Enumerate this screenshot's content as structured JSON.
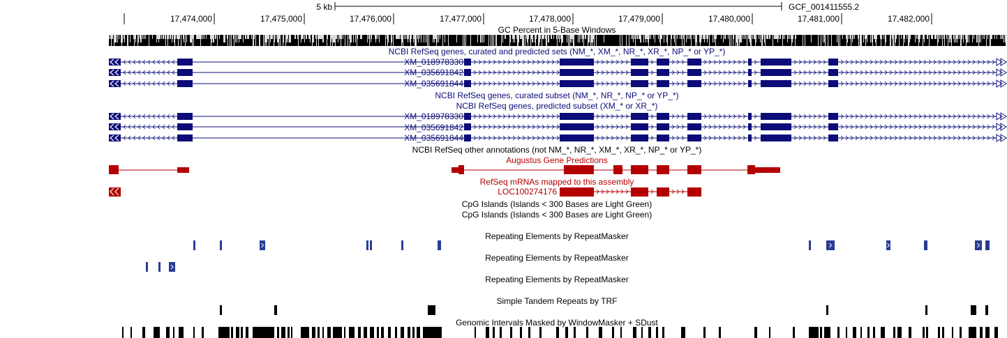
{
  "genome": {
    "scale_label": "5 kb",
    "assembly": "GCF_001411555.2",
    "positions": [
      "17,474,000",
      "17,475,000",
      "17,476,000",
      "17,477,000",
      "17,478,000",
      "17,479,000",
      "17,480,000",
      "17,481,000",
      "17,482,000"
    ]
  },
  "tracks": {
    "gc_percent": {
      "title": "GC Percent in 5-Base Windows",
      "color": "#000000"
    },
    "refseq_all": {
      "title": "NCBI RefSeq genes, curated and predicted sets (NM_*, XM_*, NR_*, XR_*, NP_* or YP_*)",
      "color": "#0c0c78",
      "transcripts": [
        "XM_018978330.2",
        "XM_035691842.1",
        "XM_035691844.1"
      ]
    },
    "refseq_curated": {
      "title": "NCBI RefSeq genes, curated subset (NM_*, NR_*, NP_* or YP_*)",
      "color": "#0c0c78"
    },
    "refseq_predicted": {
      "title": "NCBI RefSeq genes, predicted subset (XM_* or XR_*)",
      "color": "#0c0c78",
      "transcripts": [
        "XM_018978330.2",
        "XM_035691842.1",
        "XM_035691844.1"
      ]
    },
    "refseq_other": {
      "title": "NCBI RefSeq other annotations (not NM_*, NR_*, XM_*, XR_*, NP_* or YP_*)",
      "color": "#000000"
    },
    "augustus": {
      "title": "Augustus Gene Predictions",
      "color": "#b40000"
    },
    "refseq_mrna": {
      "title": "RefSeq mRNAs mapped to this assembly",
      "color": "#b40000",
      "transcript": "LOC100274176"
    },
    "cpg_1": {
      "title": "CpG Islands (Islands < 300 Bases are Light Green)"
    },
    "cpg_2": {
      "title": "CpG Islands (Islands < 300 Bases are Light Green)"
    },
    "rmsk_1": {
      "title": "Repeating Elements by RepeatMasker",
      "color": "#283c96"
    },
    "rmsk_2": {
      "title": "Repeating Elements by RepeatMasker",
      "color": "#283c96"
    },
    "rmsk_3": {
      "title": "Repeating Elements by RepeatMasker"
    },
    "trf": {
      "title": "Simple Tandem Repeats by TRF",
      "color": "#000000"
    },
    "windowmasker": {
      "title": "Genomic Intervals Masked by WindowMasker + SDust",
      "color": "#000000"
    }
  }
}
